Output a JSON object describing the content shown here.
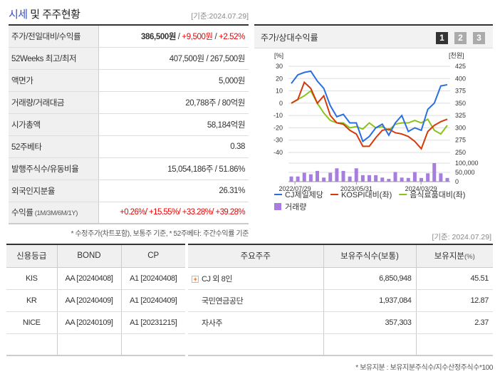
{
  "header": {
    "title_hl": "시세",
    "title_rest": " 및 주주현황",
    "date": "[기준:2024.07.29]"
  },
  "price_table": [
    {
      "label": "주가/전일대비/수익률",
      "price": "386,500원",
      "sep1": " / ",
      "change": "+9,500원",
      "sep2": " / ",
      "rate": "+2.52%"
    },
    {
      "label": "52Weeks 최고/최저",
      "value": "407,500원 / 267,500원"
    },
    {
      "label": "액면가",
      "value": "5,000원"
    },
    {
      "label": "거래량/거래대금",
      "value": "20,788주 / 80억원"
    },
    {
      "label": "시가총액",
      "value": "58,184억원"
    },
    {
      "label": "52주베타",
      "value": "0.38"
    },
    {
      "label": "발행주식수/유동비율",
      "value": "15,054,186주 / 51.86%"
    },
    {
      "label": "외국인지분율",
      "value": "26.31%"
    },
    {
      "label": "수익률",
      "label_sub": " (1M/3M/6M/1Y)",
      "value": "+0.26%/ +15.55%/ +33.28%/ +39.28%"
    }
  ],
  "price_footnote": "* 수정주가(차트포함), 보통주 기준, * 52주베타: 주간수익률 기준",
  "chart_panel": {
    "title": "주가/상대수익률",
    "pages": [
      "1",
      "2",
      "3"
    ],
    "active_page": "1",
    "colors": {
      "active": "#333333",
      "inactive": "#aaaaaa"
    }
  },
  "chart_data": {
    "type": "line",
    "left_unit": "[%]",
    "right_unit": "[천원]",
    "left_ticks": [
      "30",
      "20",
      "10",
      "0",
      "-10",
      "-20",
      "-30",
      "-40"
    ],
    "right_ticks": [
      "425",
      "400",
      "375",
      "350",
      "325",
      "300",
      "275",
      "250"
    ],
    "ylim_left": [
      -40,
      30
    ],
    "ylim_right": [
      250,
      425
    ],
    "volume_ticks": [
      "100,000",
      "50,000",
      "0"
    ],
    "volume_lim": [
      0,
      100000
    ],
    "x_labels": [
      "2022/07/29",
      "2023/05/31",
      "2024/03/29"
    ],
    "series": [
      {
        "name": "CJ제일제당",
        "color": "#2a6ee0",
        "values": [
          16,
          23,
          25,
          26,
          18,
          12,
          -2,
          -11,
          -9,
          -16,
          -16,
          -31,
          -27,
          -20,
          -17,
          -26,
          -16,
          -10,
          -23,
          -20,
          -22,
          -5,
          0,
          14,
          15
        ]
      },
      {
        "name": "KOSPI대비(좌)",
        "color": "#d43a0a",
        "values": [
          0,
          3,
          17,
          12,
          0,
          6,
          -10,
          -16,
          -17,
          -22,
          -25,
          -35,
          -35,
          -28,
          -22,
          -21,
          -24,
          -25,
          -27,
          -31,
          -37,
          -23,
          -18,
          -15,
          -13
        ]
      },
      {
        "name": "음식료품대비(좌)",
        "color": "#8cc21a",
        "values": [
          0,
          3,
          6,
          10,
          0,
          -8,
          -14,
          -16,
          -16,
          -20,
          -19,
          -21,
          -16,
          -20,
          -19,
          -22,
          -17,
          -16,
          -16,
          -14,
          -16,
          -13,
          -22,
          -25,
          -18
        ]
      }
    ],
    "volume": {
      "name": "거래량",
      "color": "#a77de0",
      "values": [
        28000,
        28000,
        48000,
        40000,
        58000,
        22000,
        48000,
        72000,
        58000,
        28000,
        72000,
        35000,
        35000,
        35000,
        22000,
        15000,
        52000,
        22000,
        20000,
        52000,
        20000,
        45000,
        100000,
        45000,
        20000
      ]
    }
  },
  "bottom_date": "[기준: 2024.07.29]",
  "credit": {
    "headers": [
      "신용등급",
      "BOND",
      "CP"
    ],
    "rows": [
      [
        "KIS",
        "AA  [20240408]",
        "A1  [20240408]"
      ],
      [
        "KR",
        "AA  [20240409]",
        "A1  [20240409]"
      ],
      [
        "NICE",
        "AA  [20240109]",
        "A1  [20231215]"
      ],
      [
        "",
        "",
        ""
      ]
    ]
  },
  "holders": {
    "headers": [
      "주요주주",
      "보유주식수(보통)",
      "보유지분",
      "(%)"
    ],
    "rows": [
      [
        "CJ 외 8인",
        "6,850,948",
        "45.51"
      ],
      [
        "국민연금공단",
        "1,937,084",
        "12.87"
      ],
      [
        "자사주",
        "357,303",
        "2.37"
      ],
      [
        "",
        "",
        ""
      ]
    ],
    "footnote": "* 보유지분 : 보유지분주식수/지수산정주식수*100"
  }
}
